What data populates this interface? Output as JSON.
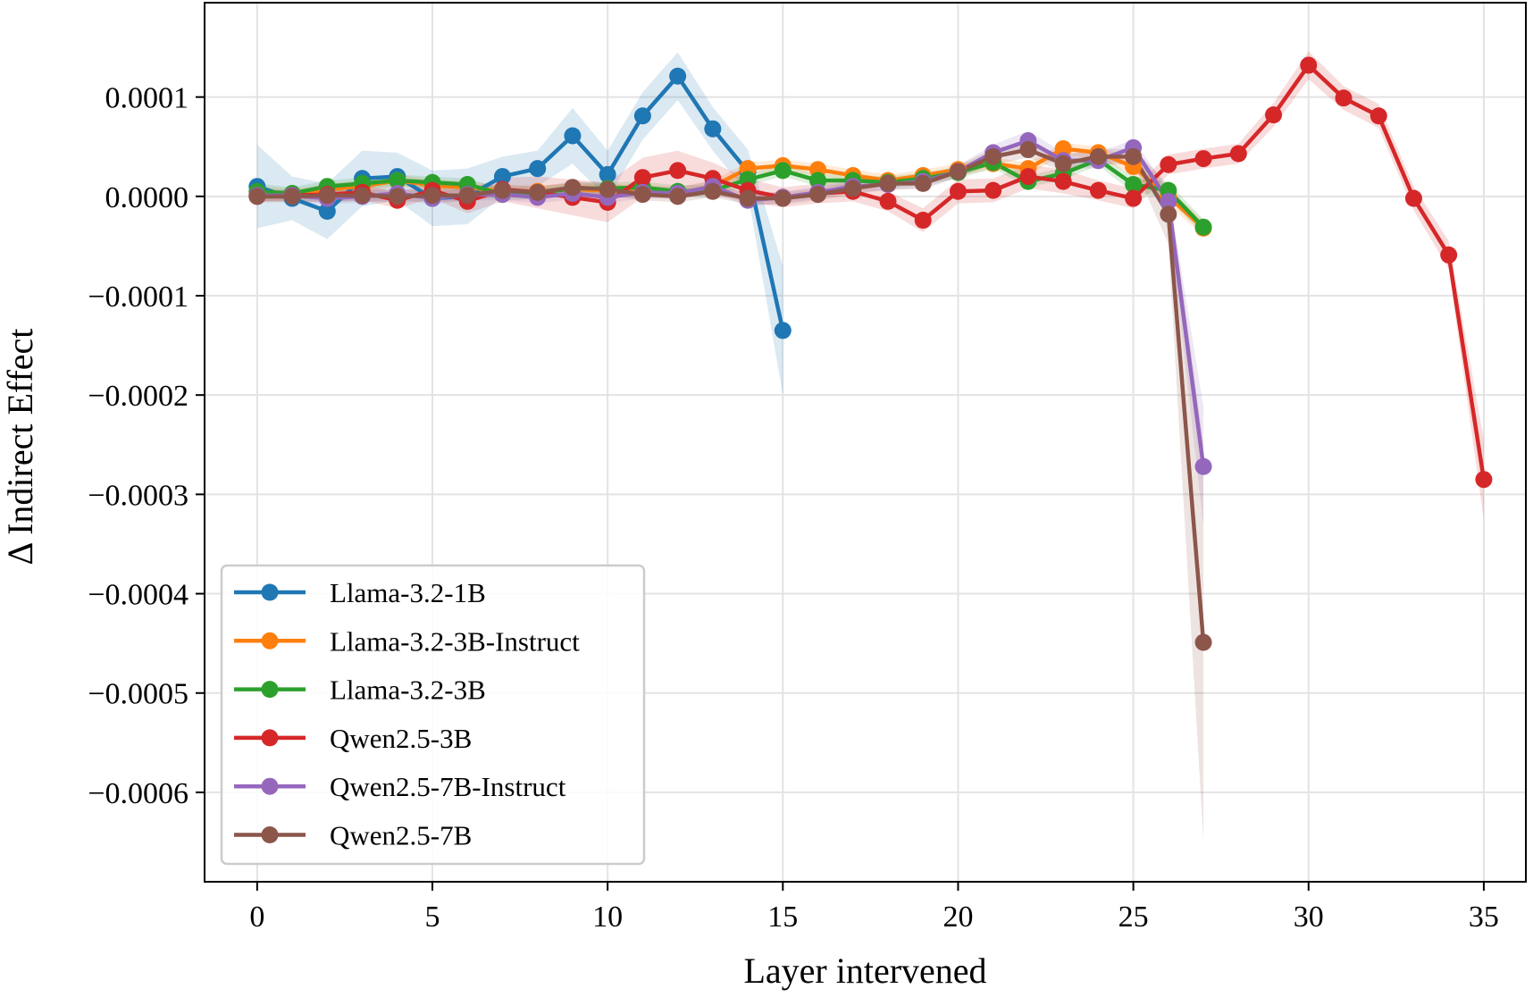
{
  "chart_data": {
    "type": "line",
    "title": "",
    "xlabel": "Layer intervened",
    "ylabel": "Δ Indirect Effect",
    "xlim": [
      -1.5,
      36.2
    ],
    "ylim": [
      -0.00069,
      0.000195
    ],
    "xticks": [
      0,
      5,
      10,
      15,
      20,
      25,
      30,
      35
    ],
    "yticks": [
      0.0001,
      0.0,
      -0.0001,
      -0.0002,
      -0.0003,
      -0.0004,
      -0.0005,
      -0.0006
    ],
    "xtick_labels": [
      "0",
      "5",
      "10",
      "15",
      "20",
      "25",
      "30",
      "35"
    ],
    "ytick_labels": [
      "0.0001",
      "0.0000",
      "−0.0001",
      "−0.0002",
      "−0.0003",
      "−0.0004",
      "−0.0005",
      "−0.0006"
    ],
    "grid": true,
    "legend_position": "bottom-left",
    "series": [
      {
        "name": "Llama-3.2-1B",
        "color": "#1f77b4",
        "values": [
          1e-05,
          -2e-06,
          -1.5e-05,
          1.8e-05,
          2e-05,
          -2e-06,
          0.0,
          2e-05,
          2.8e-05,
          6.1e-05,
          2.2e-05,
          8.1e-05,
          0.000121,
          6.8e-05,
          2.5e-05,
          -0.000135
        ],
        "band": [
          4.2e-05,
          2.2e-05,
          2.8e-05,
          2.8e-05,
          2.4e-05,
          2.8e-05,
          2.8e-05,
          2e-05,
          1.8e-05,
          2.8e-05,
          2.4e-05,
          2.4e-05,
          2.4e-05,
          2.2e-05,
          2.2e-05,
          6.5e-05
        ]
      },
      {
        "name": "Llama-3.2-3B-Instruct",
        "color": "#ff7f0e",
        "values": [
          3e-06,
          1e-06,
          7e-06,
          1e-05,
          1.6e-05,
          1.1e-05,
          9e-06,
          5e-06,
          5e-06,
          7e-06,
          6e-06,
          6e-06,
          3e-06,
          1e-05,
          2.8e-05,
          3.1e-05,
          2.7e-05,
          2.1e-05,
          1.6e-05,
          2.1e-05,
          2.7e-05,
          3.3e-05,
          2.8e-05,
          4.8e-05,
          4.4e-05,
          3e-05,
          0.0,
          -3.2e-05
        ],
        "band": [
          8e-06,
          6e-06,
          6e-06,
          6e-06,
          6e-06,
          6e-06,
          6e-06,
          6e-06,
          6e-06,
          6e-06,
          6e-06,
          6e-06,
          6e-06,
          6e-06,
          6e-06,
          6e-06,
          6e-06,
          6e-06,
          6e-06,
          6e-06,
          6e-06,
          6e-06,
          6e-06,
          6e-06,
          6e-06,
          8e-06,
          8e-06,
          8e-06
        ]
      },
      {
        "name": "Llama-3.2-3B",
        "color": "#2ca02c",
        "values": [
          5e-06,
          3e-06,
          1e-05,
          1.3e-05,
          1.6e-05,
          1.4e-05,
          1.2e-05,
          2e-06,
          3e-06,
          8e-06,
          8e-06,
          9e-06,
          5e-06,
          6e-06,
          1.7e-05,
          2.6e-05,
          1.6e-05,
          1.6e-05,
          1.4e-05,
          1.8e-05,
          2.4e-05,
          3.4e-05,
          1.5e-05,
          2.3e-05,
          3.7e-05,
          1.2e-05,
          6e-06,
          -3.1e-05
        ],
        "band": [
          8e-06,
          6e-06,
          6e-06,
          6e-06,
          6e-06,
          6e-06,
          6e-06,
          6e-06,
          6e-06,
          6e-06,
          6e-06,
          6e-06,
          6e-06,
          6e-06,
          6e-06,
          6e-06,
          6e-06,
          6e-06,
          6e-06,
          6e-06,
          6e-06,
          6e-06,
          6e-06,
          6e-06,
          6e-06,
          8e-06,
          8e-06,
          8e-06
        ]
      },
      {
        "name": "Qwen2.5-3B",
        "color": "#d62728",
        "values": [
          0.0,
          1e-06,
          2e-06,
          4e-06,
          -4e-06,
          6e-06,
          -5e-06,
          7e-06,
          4e-06,
          -1e-06,
          -6e-06,
          1.9e-05,
          2.6e-05,
          1.8e-05,
          6e-06,
          -1e-06,
          3e-06,
          5e-06,
          -5e-06,
          -2.4e-05,
          5e-06,
          6e-06,
          2e-05,
          1.5e-05,
          6e-06,
          -2e-06,
          3.2e-05,
          3.8e-05,
          4.3e-05,
          8.2e-05,
          0.000132,
          9.9e-05,
          8.1e-05,
          -2e-06,
          -5.9e-05,
          -0.000285
        ],
        "band": [
          5e-06,
          5e-06,
          8e-06,
          8e-06,
          8e-06,
          8e-06,
          1.2e-05,
          1.2e-05,
          1.6e-05,
          1.8e-05,
          2e-05,
          2e-05,
          2e-05,
          1.6e-05,
          1.2e-05,
          1e-05,
          1e-05,
          1e-05,
          1e-05,
          1.2e-05,
          1.2e-05,
          1.2e-05,
          1.2e-05,
          1.2e-05,
          1e-05,
          1e-05,
          1e-05,
          1e-05,
          1e-05,
          1.2e-05,
          1.4e-05,
          1.2e-05,
          1.2e-05,
          1.2e-05,
          1.4e-05,
          4e-05
        ]
      },
      {
        "name": "Qwen2.5-7B-Instruct",
        "color": "#9467bd",
        "values": [
          1e-06,
          1e-06,
          -2e-06,
          0.0,
          3e-06,
          -2e-06,
          2e-06,
          2e-06,
          -1e-06,
          3e-06,
          -1e-06,
          4e-06,
          3e-06,
          1e-05,
          -4e-06,
          -1e-06,
          4e-06,
          1e-05,
          1.2e-05,
          1.5e-05,
          2.5e-05,
          4.4e-05,
          5.6e-05,
          3.6e-05,
          3.6e-05,
          4.9e-05,
          -5e-06,
          -0.000272
        ],
        "band": [
          6e-06,
          6e-06,
          6e-06,
          6e-06,
          6e-06,
          6e-06,
          6e-06,
          6e-06,
          6e-06,
          6e-06,
          6e-06,
          6e-06,
          6e-06,
          6e-06,
          6e-06,
          6e-06,
          6e-06,
          6e-06,
          6e-06,
          6e-06,
          6e-06,
          8e-06,
          1e-05,
          8e-06,
          8e-06,
          8e-06,
          1.2e-05,
          6e-05
        ]
      },
      {
        "name": "Qwen2.5-7B",
        "color": "#8c564b",
        "values": [
          0.0,
          0.0,
          1e-06,
          1e-06,
          0.0,
          1e-06,
          1e-06,
          6e-06,
          4e-06,
          9e-06,
          7e-06,
          2e-06,
          0.0,
          5e-06,
          -2e-06,
          -2e-06,
          2e-06,
          8e-06,
          1.3e-05,
          1.3e-05,
          2.5e-05,
          4e-05,
          4.7e-05,
          3.3e-05,
          4e-05,
          4e-05,
          -1.8e-05,
          -0.000449
        ],
        "band": [
          6e-06,
          6e-06,
          6e-06,
          6e-06,
          6e-06,
          6e-06,
          6e-06,
          6e-06,
          6e-06,
          6e-06,
          6e-06,
          6e-06,
          6e-06,
          6e-06,
          6e-06,
          6e-06,
          6e-06,
          6e-06,
          6e-06,
          6e-06,
          6e-06,
          8e-06,
          8e-06,
          8e-06,
          8e-06,
          8e-06,
          3e-05,
          0.0002
        ]
      }
    ]
  }
}
